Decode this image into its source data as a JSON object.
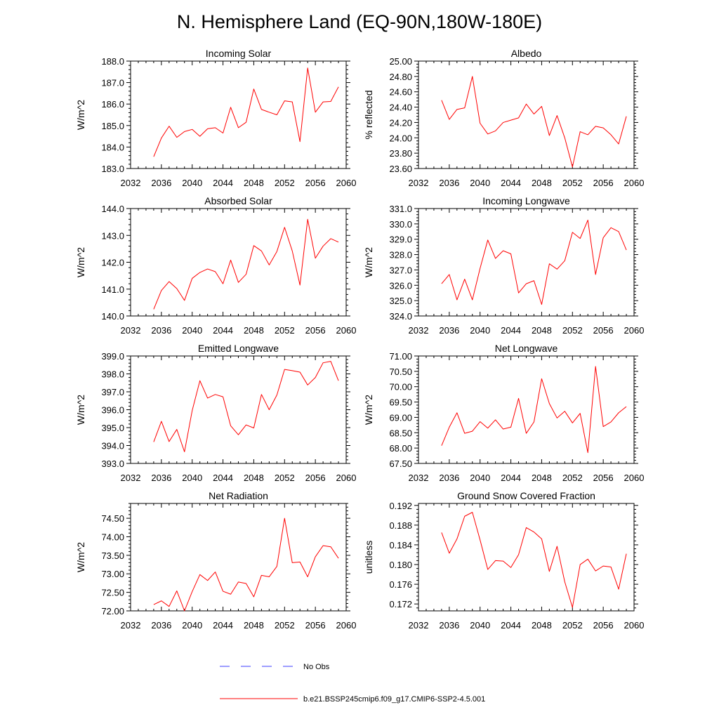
{
  "title": "N. Hemisphere Land (EQ-90N,180W-180E)",
  "colors": {
    "series": "#ff0000",
    "obs": "#3b3bff",
    "axis": "#000000"
  },
  "legend": {
    "placement": "bottom",
    "entries": [
      {
        "label": "No Obs",
        "style": "dashed",
        "color": "#3b3bff"
      },
      {
        "label": "b.e21.BSSP245cmip6.f09_g17.CMIP6-SSP2-4.5.001",
        "style": "solid",
        "color": "#ff0000"
      }
    ]
  },
  "chart_data": [
    {
      "type": "line",
      "title": "Incoming Solar",
      "ylabel": "W/m^2",
      "xlim": [
        2032,
        2060
      ],
      "ylim": [
        183.0,
        188.0
      ],
      "xticks": [
        2032,
        2036,
        2040,
        2044,
        2048,
        2052,
        2056,
        2060
      ],
      "xtick_labels": [
        "2032",
        "2036",
        "2040",
        "2044",
        "2048",
        "2052",
        "2056",
        "2060"
      ],
      "yticks": [
        183.0,
        184.0,
        185.0,
        186.0,
        187.0,
        188.0
      ],
      "ytick_labels": [
        "183.0",
        "184.0",
        "185.0",
        "186.0",
        "187.0",
        "188.0"
      ],
      "grid": false,
      "x": [
        2035,
        2036,
        2037,
        2038,
        2039,
        2040,
        2041,
        2042,
        2043,
        2044,
        2045,
        2046,
        2047,
        2048,
        2049,
        2050,
        2051,
        2052,
        2053,
        2054,
        2055,
        2056,
        2057,
        2058,
        2059
      ],
      "series": [
        {
          "values": [
            183.55,
            184.42,
            184.97,
            184.45,
            184.72,
            184.82,
            184.5,
            184.85,
            184.9,
            184.65,
            185.85,
            184.9,
            185.15,
            186.7,
            185.75,
            185.62,
            185.5,
            186.15,
            186.1,
            184.25,
            187.68,
            185.62,
            186.1,
            186.12,
            186.8
          ]
        }
      ]
    },
    {
      "type": "line",
      "title": "Albedo",
      "ylabel": "% reflected",
      "xlim": [
        2032,
        2060
      ],
      "ylim": [
        23.6,
        25.0
      ],
      "xticks": [
        2032,
        2036,
        2040,
        2044,
        2048,
        2052,
        2056,
        2060
      ],
      "xtick_labels": [
        "2032",
        "2036",
        "2040",
        "2044",
        "2048",
        "2052",
        "2056",
        "2060"
      ],
      "yticks": [
        23.6,
        23.8,
        24.0,
        24.2,
        24.4,
        24.6,
        24.8,
        25.0
      ],
      "ytick_labels": [
        "23.60",
        "23.80",
        "24.00",
        "24.20",
        "24.40",
        "24.60",
        "24.80",
        "25.00"
      ],
      "grid": false,
      "x": [
        2035,
        2036,
        2037,
        2038,
        2039,
        2040,
        2041,
        2042,
        2043,
        2044,
        2045,
        2046,
        2047,
        2048,
        2049,
        2050,
        2051,
        2052,
        2053,
        2054,
        2055,
        2056,
        2057,
        2058,
        2059
      ],
      "series": [
        {
          "values": [
            24.49,
            24.24,
            24.37,
            24.39,
            24.8,
            24.19,
            24.05,
            24.09,
            24.2,
            24.23,
            24.26,
            24.44,
            24.31,
            24.41,
            24.03,
            24.29,
            24.0,
            23.62,
            24.08,
            24.04,
            24.15,
            24.13,
            24.04,
            23.92,
            24.28
          ]
        }
      ]
    },
    {
      "type": "line",
      "title": "Absorbed Solar",
      "ylabel": "W/m^2",
      "xlim": [
        2032,
        2060
      ],
      "ylim": [
        140.0,
        144.0
      ],
      "xticks": [
        2032,
        2036,
        2040,
        2044,
        2048,
        2052,
        2056,
        2060
      ],
      "xtick_labels": [
        "2032",
        "2036",
        "2040",
        "2044",
        "2048",
        "2052",
        "2056",
        "2060"
      ],
      "yticks": [
        140.0,
        141.0,
        142.0,
        143.0,
        144.0
      ],
      "ytick_labels": [
        "140.0",
        "141.0",
        "142.0",
        "143.0",
        "144.0"
      ],
      "grid": false,
      "x": [
        2035,
        2036,
        2037,
        2038,
        2039,
        2040,
        2041,
        2042,
        2043,
        2044,
        2045,
        2046,
        2047,
        2048,
        2049,
        2050,
        2051,
        2052,
        2053,
        2054,
        2055,
        2056,
        2057,
        2058,
        2059
      ],
      "series": [
        {
          "values": [
            140.25,
            140.95,
            141.28,
            141.02,
            140.58,
            141.4,
            141.62,
            141.75,
            141.65,
            141.2,
            142.08,
            141.25,
            141.55,
            142.62,
            142.42,
            141.9,
            142.4,
            143.3,
            142.42,
            141.15,
            143.6,
            142.15,
            142.6,
            142.88,
            142.75
          ]
        }
      ]
    },
    {
      "type": "line",
      "title": "Incoming Longwave",
      "ylabel": "W/m^2",
      "xlim": [
        2032,
        2060
      ],
      "ylim": [
        324.0,
        331.0
      ],
      "xticks": [
        2032,
        2036,
        2040,
        2044,
        2048,
        2052,
        2056,
        2060
      ],
      "xtick_labels": [
        "2032",
        "2036",
        "2040",
        "2044",
        "2048",
        "2052",
        "2056",
        "2060"
      ],
      "yticks": [
        324.0,
        325.0,
        326.0,
        327.0,
        328.0,
        329.0,
        330.0,
        331.0
      ],
      "ytick_labels": [
        "324.0",
        "325.0",
        "326.0",
        "327.0",
        "328.0",
        "329.0",
        "330.0",
        "331.0"
      ],
      "grid": false,
      "x": [
        2035,
        2036,
        2037,
        2038,
        2039,
        2040,
        2041,
        2042,
        2043,
        2044,
        2045,
        2046,
        2047,
        2048,
        2049,
        2050,
        2051,
        2052,
        2053,
        2054,
        2055,
        2056,
        2057,
        2058,
        2059
      ],
      "series": [
        {
          "values": [
            326.1,
            326.7,
            325.05,
            326.4,
            325.05,
            327.1,
            328.95,
            327.75,
            328.25,
            328.05,
            325.5,
            326.1,
            326.3,
            324.75,
            327.4,
            327.05,
            327.6,
            329.45,
            329.05,
            330.25,
            326.7,
            329.1,
            329.75,
            329.5,
            328.3
          ]
        }
      ]
    },
    {
      "type": "line",
      "title": "Emitted Longwave",
      "ylabel": "W/m^2",
      "xlim": [
        2032,
        2060
      ],
      "ylim": [
        393.0,
        399.0
      ],
      "xticks": [
        2032,
        2036,
        2040,
        2044,
        2048,
        2052,
        2056,
        2060
      ],
      "xtick_labels": [
        "2032",
        "2036",
        "2040",
        "2044",
        "2048",
        "2052",
        "2056",
        "2060"
      ],
      "yticks": [
        393.0,
        394.0,
        395.0,
        396.0,
        397.0,
        398.0,
        399.0
      ],
      "ytick_labels": [
        "393.0",
        "394.0",
        "395.0",
        "396.0",
        "397.0",
        "398.0",
        "399.0"
      ],
      "grid": false,
      "x": [
        2035,
        2036,
        2037,
        2038,
        2039,
        2040,
        2041,
        2042,
        2043,
        2044,
        2045,
        2046,
        2047,
        2048,
        2049,
        2050,
        2051,
        2052,
        2053,
        2054,
        2055,
        2056,
        2057,
        2058,
        2059
      ],
      "series": [
        {
          "values": [
            394.2,
            395.35,
            394.22,
            394.9,
            393.65,
            395.95,
            397.62,
            396.65,
            396.85,
            396.72,
            395.1,
            394.6,
            395.15,
            394.98,
            396.85,
            396.0,
            396.82,
            398.25,
            398.18,
            398.1,
            397.38,
            397.8,
            398.62,
            398.7,
            397.62
          ]
        }
      ]
    },
    {
      "type": "line",
      "title": "Net Longwave",
      "ylabel": "W/m^2",
      "xlim": [
        2032,
        2060
      ],
      "ylim": [
        67.5,
        71.0
      ],
      "xticks": [
        2032,
        2036,
        2040,
        2044,
        2048,
        2052,
        2056,
        2060
      ],
      "xtick_labels": [
        "2032",
        "2036",
        "2040",
        "2044",
        "2048",
        "2052",
        "2056",
        "2060"
      ],
      "yticks": [
        67.5,
        68.0,
        68.5,
        69.0,
        69.5,
        70.0,
        70.5,
        71.0
      ],
      "ytick_labels": [
        "67.50",
        "68.00",
        "68.50",
        "69.00",
        "69.50",
        "70.00",
        "70.50",
        "71.00"
      ],
      "grid": false,
      "x": [
        2035,
        2036,
        2037,
        2038,
        2039,
        2040,
        2041,
        2042,
        2043,
        2044,
        2045,
        2046,
        2047,
        2048,
        2049,
        2050,
        2051,
        2052,
        2053,
        2054,
        2055,
        2056,
        2057,
        2058,
        2059
      ],
      "series": [
        {
          "values": [
            68.08,
            68.68,
            69.15,
            68.48,
            68.55,
            68.86,
            68.65,
            68.92,
            68.62,
            68.68,
            69.62,
            68.48,
            68.85,
            70.26,
            69.45,
            68.98,
            69.2,
            68.82,
            69.13,
            67.85,
            70.66,
            68.7,
            68.85,
            69.15,
            69.35
          ]
        }
      ]
    },
    {
      "type": "line",
      "title": "Net Radiation",
      "ylabel": "W/m^2",
      "xlim": [
        2032,
        2060
      ],
      "ylim": [
        72.0,
        74.9
      ],
      "xticks": [
        2032,
        2036,
        2040,
        2044,
        2048,
        2052,
        2056,
        2060
      ],
      "xtick_labels": [
        "2032",
        "2036",
        "2040",
        "2044",
        "2048",
        "2052",
        "2056",
        "2060"
      ],
      "yticks": [
        72.0,
        72.5,
        73.0,
        73.5,
        74.0,
        74.5
      ],
      "ytick_labels": [
        "72.00",
        "72.50",
        "73.00",
        "73.50",
        "74.00",
        "74.50"
      ],
      "grid": false,
      "x": [
        2035,
        2036,
        2037,
        2038,
        2039,
        2040,
        2041,
        2042,
        2043,
        2044,
        2045,
        2046,
        2047,
        2048,
        2049,
        2050,
        2051,
        2052,
        2053,
        2054,
        2055,
        2056,
        2057,
        2058,
        2059
      ],
      "series": [
        {
          "values": [
            72.17,
            72.27,
            72.12,
            72.54,
            72.0,
            72.52,
            72.98,
            72.82,
            73.05,
            72.53,
            72.45,
            72.78,
            72.74,
            72.38,
            72.96,
            72.92,
            73.2,
            74.5,
            73.3,
            73.32,
            72.92,
            73.46,
            73.76,
            73.73,
            73.42
          ]
        }
      ]
    },
    {
      "type": "line",
      "title": "Ground Snow Covered Fraction",
      "ylabel": "unitless",
      "xlim": [
        2032,
        2060
      ],
      "ylim": [
        0.1706,
        0.1924
      ],
      "xticks": [
        2032,
        2036,
        2040,
        2044,
        2048,
        2052,
        2056,
        2060
      ],
      "xtick_labels": [
        "2032",
        "2036",
        "2040",
        "2044",
        "2048",
        "2052",
        "2056",
        "2060"
      ],
      "yticks": [
        0.172,
        0.176,
        0.18,
        0.184,
        0.188,
        0.192
      ],
      "ytick_labels": [
        "0.172",
        "0.176",
        "0.180",
        "0.184",
        "0.188",
        "0.192"
      ],
      "grid": false,
      "x": [
        2035,
        2036,
        2037,
        2038,
        2039,
        2040,
        2041,
        2042,
        2043,
        2044,
        2045,
        2046,
        2047,
        2048,
        2049,
        2050,
        2051,
        2052,
        2053,
        2054,
        2055,
        2056,
        2057,
        2058,
        2059
      ],
      "series": [
        {
          "values": [
            0.1865,
            0.1823,
            0.1852,
            0.1898,
            0.1906,
            0.185,
            0.179,
            0.1808,
            0.1807,
            0.1794,
            0.182,
            0.1875,
            0.1866,
            0.1852,
            0.1786,
            0.1837,
            0.1765,
            0.1713,
            0.18,
            0.1811,
            0.1787,
            0.1797,
            0.1795,
            0.175,
            0.1822
          ]
        }
      ]
    }
  ]
}
